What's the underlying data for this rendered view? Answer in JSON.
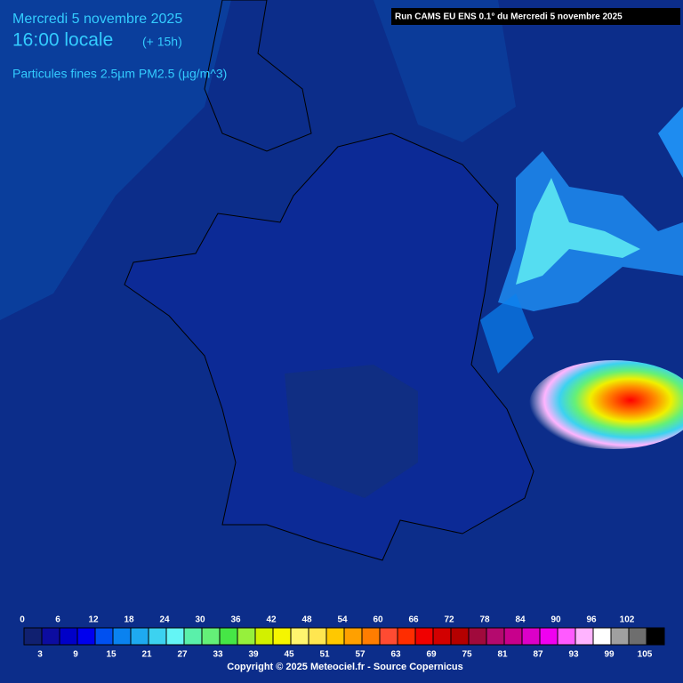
{
  "header": {
    "date": "Mercredi 5 novembre 2025",
    "time": "16:00 locale",
    "offset": "(+ 15h)",
    "variable": "Particules fines 2.5µm PM2.5 (µg/m^3)",
    "run": "Run CAMS EU ENS 0.1° du Mercredi 5 novembre 2025"
  },
  "legend": {
    "ticks": [
      0,
      3,
      6,
      9,
      12,
      15,
      18,
      21,
      24,
      27,
      30,
      33,
      36,
      39,
      42,
      45,
      48,
      51,
      54,
      57,
      60,
      63,
      66,
      69,
      72,
      75,
      78,
      81,
      84,
      87,
      90,
      93,
      96,
      99,
      102,
      105
    ],
    "colors": [
      "#102070",
      "#0c0ca0",
      "#0000c8",
      "#0000ee",
      "#0050f0",
      "#0a82f0",
      "#1eaaf0",
      "#3cd2f0",
      "#64f5f5",
      "#5af0aa",
      "#64f078",
      "#46e646",
      "#96f03c",
      "#d2f000",
      "#f5f500",
      "#fff56e",
      "#ffe650",
      "#ffc800",
      "#ffa000",
      "#ff7d00",
      "#ff4b32",
      "#ff2d00",
      "#f00000",
      "#d20000",
      "#b40000",
      "#a00a3c",
      "#b40a6e",
      "#c8008c",
      "#dc00c8",
      "#f000f0",
      "#ff5aff",
      "#ffb4ff",
      "#ffffff",
      "#a0a0a0",
      "#6e6e6e",
      "#000000"
    ]
  },
  "footer": {
    "copyright": "Copyright © 2025 Meteociel.fr - Source Copernicus"
  }
}
